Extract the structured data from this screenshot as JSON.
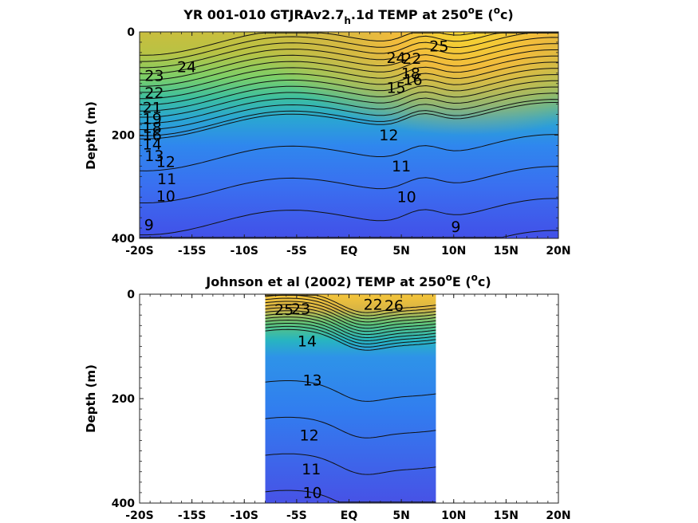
{
  "chart_data": [
    {
      "type": "heatmap",
      "title_prefix": "YR 001-010 GTJRAv2.7",
      "title_subscript": "h",
      "title_mid": ".1d TEMP at 250",
      "title_sup": "o",
      "title_end": "E (",
      "title_unit_sup": "o",
      "title_unit_end": "c)",
      "ylabel": "Depth (m)",
      "x_ticks": [
        "-20S",
        "-15S",
        "-10S",
        "-5S",
        "EQ",
        "5N",
        "10N",
        "15N",
        "20N"
      ],
      "y_ticks": [
        "0",
        "200",
        "400"
      ],
      "xlim": [
        -20,
        20
      ],
      "ylim": [
        0,
        400
      ],
      "data_xrange": [
        -20,
        20
      ],
      "contour_levels": [
        9,
        10,
        11,
        12,
        13,
        14,
        15,
        16,
        17,
        18,
        19,
        20,
        21,
        22,
        23,
        24,
        25,
        26,
        27
      ],
      "contour_labels": [
        {
          "text": "24",
          "x": -15.5,
          "y": 78
        },
        {
          "text": "23",
          "x": -18.6,
          "y": 95
        },
        {
          "text": "22",
          "x": -18.6,
          "y": 128
        },
        {
          "text": "21",
          "x": -18.8,
          "y": 157
        },
        {
          "text": "19",
          "x": -18.8,
          "y": 178
        },
        {
          "text": "18",
          "x": -18.8,
          "y": 195
        },
        {
          "text": "16",
          "x": -18.8,
          "y": 210
        },
        {
          "text": "14",
          "x": -18.8,
          "y": 228
        },
        {
          "text": "13",
          "x": -18.6,
          "y": 250
        },
        {
          "text": "12",
          "x": -17.5,
          "y": 262
        },
        {
          "text": "11",
          "x": -17.4,
          "y": 295
        },
        {
          "text": "10",
          "x": -17.5,
          "y": 328
        },
        {
          "text": "9",
          "x": -19.1,
          "y": 384
        },
        {
          "text": "25",
          "x": 8.6,
          "y": 38
        },
        {
          "text": "24",
          "x": 4.5,
          "y": 60
        },
        {
          "text": "22",
          "x": 6.0,
          "y": 62
        },
        {
          "text": "18",
          "x": 5.9,
          "y": 90
        },
        {
          "text": "16",
          "x": 6.1,
          "y": 103
        },
        {
          "text": "15",
          "x": 4.5,
          "y": 118
        },
        {
          "text": "12",
          "x": 3.8,
          "y": 210
        },
        {
          "text": "11",
          "x": 5.0,
          "y": 270
        },
        {
          "text": "10",
          "x": 5.5,
          "y": 330
        },
        {
          "text": "9",
          "x": 10.2,
          "y": 388
        }
      ]
    },
    {
      "type": "heatmap",
      "title_prefix": "Johnson et al (2002) TEMP at 250",
      "title_sup": "o",
      "title_end": "E (",
      "title_unit_sup": "o",
      "title_unit_end": "c)",
      "ylabel": "Depth (m)",
      "x_ticks": [
        "-20S",
        "-15S",
        "-10S",
        "-5S",
        "EQ",
        "5N",
        "10N",
        "15N",
        "20N"
      ],
      "y_ticks": [
        "0",
        "200",
        "400"
      ],
      "xlim": [
        -20,
        20
      ],
      "ylim": [
        0,
        400
      ],
      "data_xrange": [
        -8,
        8.3
      ],
      "contour_levels": [
        10,
        11,
        12,
        13,
        14,
        15,
        16,
        17,
        18,
        19,
        20,
        21,
        22,
        23,
        24,
        25,
        26
      ],
      "contour_labels": [
        {
          "text": "25",
          "x": -6.2,
          "y": 40
        },
        {
          "text": "23",
          "x": -4.6,
          "y": 38
        },
        {
          "text": "22",
          "x": 2.3,
          "y": 30
        },
        {
          "text": "26",
          "x": 4.3,
          "y": 32
        },
        {
          "text": "14",
          "x": -4.0,
          "y": 100
        },
        {
          "text": "13",
          "x": -3.5,
          "y": 175
        },
        {
          "text": "12",
          "x": -3.8,
          "y": 280
        },
        {
          "text": "11",
          "x": -3.6,
          "y": 345
        },
        {
          "text": "10",
          "x": -3.5,
          "y": 390
        }
      ]
    }
  ]
}
